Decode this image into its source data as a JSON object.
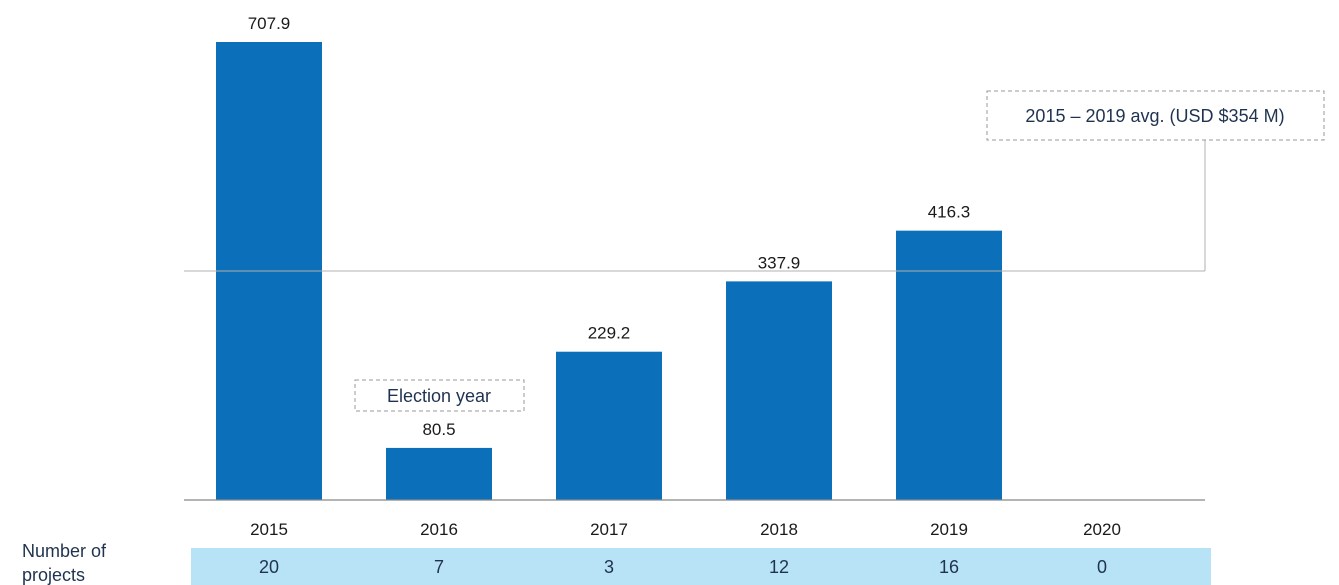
{
  "chart_data": {
    "type": "bar",
    "categories": [
      "2015",
      "2016",
      "2017",
      "2018",
      "2019",
      "2020"
    ],
    "values": [
      707.9,
      80.5,
      229.2,
      337.9,
      416.3,
      null
    ],
    "value_labels": [
      "707.9",
      "80.5",
      "229.2",
      "337.9",
      "416.3",
      ""
    ],
    "reference_line": {
      "value": 354,
      "label": "2015 – 2019 avg. (USD $354 M)"
    },
    "annotations": [
      {
        "category": "2016",
        "text": "Election year"
      }
    ],
    "ylim": [
      0,
      707.9
    ],
    "grid": false,
    "legend": "none",
    "colors": {
      "bar": "#0b70b9",
      "baseline": "#888888",
      "count_row": "#b8e2f5",
      "annotation_text": "#1f3350"
    }
  },
  "projects_row": {
    "label_line1": "Number of",
    "label_line2": "projects",
    "counts": [
      "20",
      "7",
      "3",
      "12",
      "16",
      "0"
    ]
  }
}
